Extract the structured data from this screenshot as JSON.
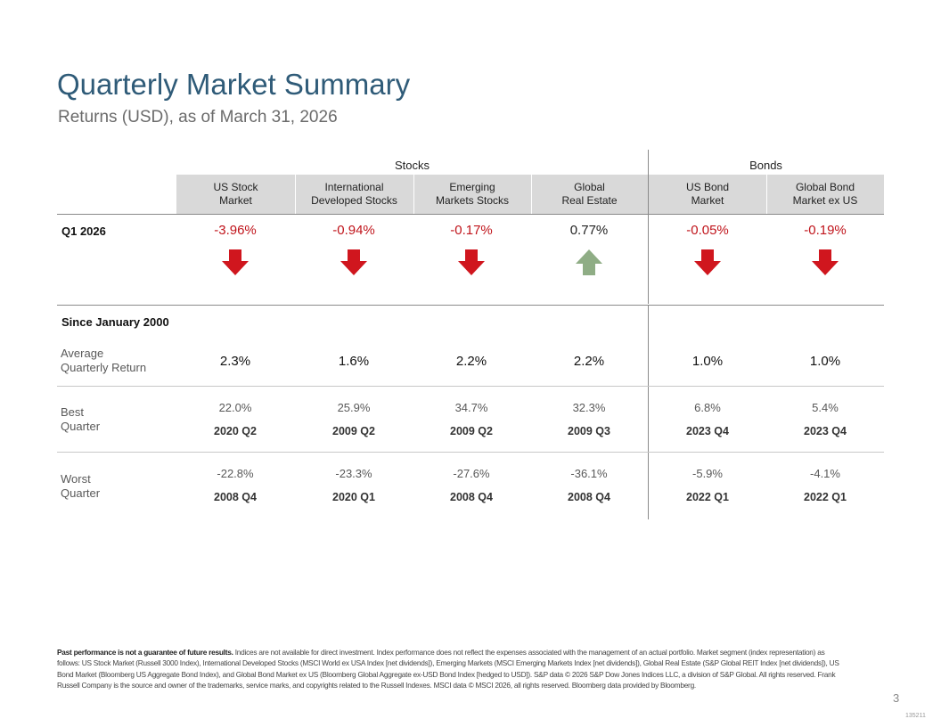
{
  "title": "Quarterly Market Summary",
  "subtitle": "Returns (USD), as of March 31, 2026",
  "groups": {
    "stocks": "Stocks",
    "bonds": "Bonds"
  },
  "columns": [
    {
      "line1": "US Stock",
      "line2": "Market"
    },
    {
      "line1": "International",
      "line2": "Developed Stocks"
    },
    {
      "line1": "Emerging",
      "line2": "Markets Stocks"
    },
    {
      "line1": "Global",
      "line2": "Real Estate"
    },
    {
      "line1": "US Bond",
      "line2": "Market"
    },
    {
      "line1": "Global Bond",
      "line2": "Market ex US"
    }
  ],
  "quarter": {
    "label": "Q1 2026",
    "values": [
      "-3.96%",
      "-0.94%",
      "-0.17%",
      "0.77%",
      "-0.05%",
      "-0.19%"
    ],
    "directions": [
      "down",
      "down",
      "down",
      "up",
      "down",
      "down"
    ]
  },
  "since": {
    "label": "Since January 2000",
    "average": {
      "label_line1": "Average",
      "label_line2": "Quarterly Return",
      "values": [
        "2.3%",
        "1.6%",
        "2.2%",
        "2.2%",
        "1.0%",
        "1.0%"
      ]
    },
    "best": {
      "label_line1": "Best",
      "label_line2": "Quarter",
      "values": [
        "22.0%",
        "25.9%",
        "34.7%",
        "32.3%",
        "6.8%",
        "5.4%"
      ],
      "periods": [
        "2020 Q2",
        "2009 Q2",
        "2009 Q2",
        "2009 Q3",
        "2023 Q4",
        "2023 Q4"
      ]
    },
    "worst": {
      "label_line1": "Worst",
      "label_line2": "Quarter",
      "values": [
        "-22.8%",
        "-23.3%",
        "-27.6%",
        "-36.1%",
        "-5.9%",
        "-4.1%"
      ],
      "periods": [
        "2008 Q4",
        "2020 Q1",
        "2008 Q4",
        "2008 Q4",
        "2022 Q1",
        "2022 Q1"
      ]
    }
  },
  "footnote": {
    "bold": "Past performance is not a guarantee of future results.",
    "text": " Indices are not available for direct investment. Index performance does not reflect the expenses associated with the management of an actual portfolio. Market segment (index representation) as follows: US Stock Market (Russell 3000 Index), International Developed Stocks (MSCI World ex USA Index [net dividends]), Emerging Markets (MSCI Emerging Markets Index [net dividends]), Global Real Estate (S&P Global REIT Index [net dividends]), US Bond Market (Bloomberg US Aggregate Bond Index), and Global Bond Market ex US (Bloomberg Global Aggregate ex-USD Bond Index [hedged to USD]). S&P data © 2026 S&P Dow Jones Indices LLC, a division of S&P Global. All rights reserved. Frank Russell Company is the source and owner of the trademarks, service marks, and copyrights related to the Russell Indexes. MSCI data © MSCI 2026, all rights reserved. Bloomberg data provided by Bloomberg."
  },
  "page_number": "3",
  "doc_code": "135211",
  "colors": {
    "title": "#2f5b78",
    "negative": "#c0141b",
    "down_arrow": "#d0161e",
    "up_arrow": "#8fad85",
    "header_bg": "#d9d9d9"
  }
}
